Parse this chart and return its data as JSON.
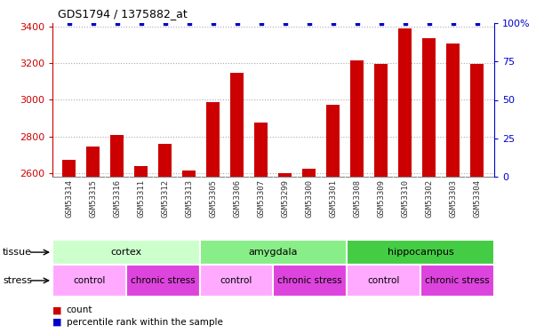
{
  "title": "GDS1794 / 1375882_at",
  "samples": [
    "GSM53314",
    "GSM53315",
    "GSM53316",
    "GSM53311",
    "GSM53312",
    "GSM53313",
    "GSM53305",
    "GSM53306",
    "GSM53307",
    "GSM53299",
    "GSM53300",
    "GSM53301",
    "GSM53308",
    "GSM53309",
    "GSM53310",
    "GSM53302",
    "GSM53303",
    "GSM53304"
  ],
  "counts": [
    2670,
    2745,
    2810,
    2635,
    2760,
    2615,
    2990,
    3150,
    2875,
    2600,
    2625,
    2975,
    3215,
    3195,
    3390,
    3340,
    3310,
    3195
  ],
  "percentiles": [
    100,
    100,
    100,
    100,
    100,
    100,
    100,
    100,
    100,
    100,
    100,
    100,
    100,
    100,
    100,
    100,
    100,
    100
  ],
  "bar_color": "#cc0000",
  "dot_color": "#0000cc",
  "ylim_left": [
    2580,
    3420
  ],
  "ylim_right": [
    0,
    100
  ],
  "yticks_left": [
    2600,
    2800,
    3000,
    3200,
    3400
  ],
  "yticks_right": [
    0,
    25,
    50,
    75,
    100
  ],
  "tissue_groups": [
    {
      "label": "cortex",
      "start": 0,
      "end": 6,
      "color": "#ccffcc"
    },
    {
      "label": "amygdala",
      "start": 6,
      "end": 12,
      "color": "#88ee88"
    },
    {
      "label": "hippocampus",
      "start": 12,
      "end": 18,
      "color": "#44cc44"
    }
  ],
  "stress_groups": [
    {
      "label": "control",
      "start": 0,
      "end": 3,
      "color": "#ffaaff"
    },
    {
      "label": "chronic stress",
      "start": 3,
      "end": 6,
      "color": "#dd44dd"
    },
    {
      "label": "control",
      "start": 6,
      "end": 9,
      "color": "#ffaaff"
    },
    {
      "label": "chronic stress",
      "start": 9,
      "end": 12,
      "color": "#dd44dd"
    },
    {
      "label": "control",
      "start": 12,
      "end": 15,
      "color": "#ffaaff"
    },
    {
      "label": "chronic stress",
      "start": 15,
      "end": 18,
      "color": "#dd44dd"
    }
  ],
  "xtick_bg": "#cccccc",
  "left_axis_color": "#cc0000",
  "right_axis_color": "#0000cc",
  "grid_color": "#aaaaaa",
  "background_color": "#ffffff",
  "bar_width": 0.55,
  "ybaseline": 2580
}
